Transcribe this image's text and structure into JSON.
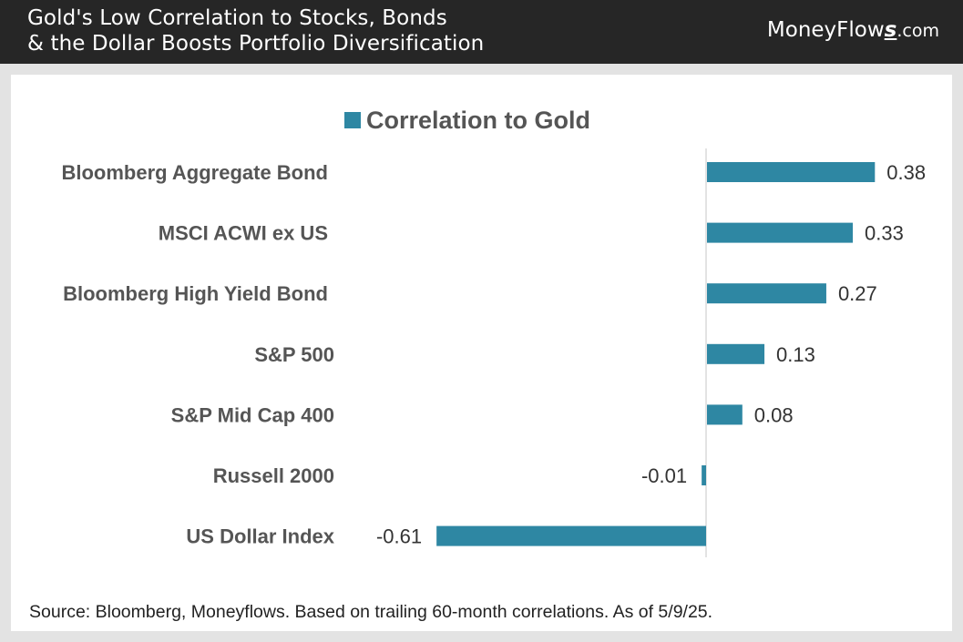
{
  "header": {
    "title_line1": "Gold's Low Correlation to Stocks, Bonds",
    "title_line2": "& the Dollar Boosts Portfolio Diversification",
    "brand_name": "MoneyFlow",
    "brand_s": "s",
    "brand_tld": ".com"
  },
  "colors": {
    "bar": "#2e87a3",
    "header_bg": "#262626"
  },
  "chart_data": {
    "type": "bar",
    "orientation": "horizontal",
    "title": "",
    "legend": [
      "Correlation to Gold"
    ],
    "categories": [
      "Bloomberg Aggregate Bond",
      "MSCI ACWI ex US",
      "Bloomberg High Yield Bond",
      "S&P 500",
      "S&P Mid Cap 400",
      "Russell 2000",
      "US Dollar Index"
    ],
    "series": [
      {
        "name": "Correlation to Gold",
        "values": [
          0.38,
          0.33,
          0.27,
          0.13,
          0.08,
          -0.01,
          -0.61
        ],
        "labels": [
          "0.38",
          "0.33",
          "0.27",
          "0.13",
          "0.08",
          "-0.01",
          "-0.61"
        ]
      }
    ],
    "xlim": [
      -0.61,
      0.38
    ],
    "grid": false,
    "legend_position": "top"
  },
  "footer": {
    "source": "Source: Bloomberg, Moneyflows. Based on trailing 60-month correlations. As of 5/9/25."
  }
}
